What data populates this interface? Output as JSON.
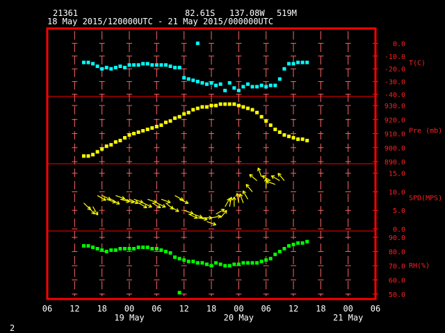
{
  "header": {
    "station_id": "21361",
    "lat": "82.61S",
    "lon": "137.08W",
    "elevation": "519M",
    "time_range": "18 May 2015/120000UTC - 21 May 2015/000000UTC"
  },
  "footer": {
    "page_number": "2"
  },
  "colors": {
    "background": "#000000",
    "frame": "#ff0000",
    "grid": "#ff6666",
    "label": "#ff2020",
    "text": "#ffffff",
    "temperature": "#00ffff",
    "pressure": "#ffff00",
    "wind": "#ffff00",
    "humidity": "#00ff00"
  },
  "chart_data": {
    "type": "scatter",
    "x_axis": {
      "unit": "hours since 18 May 2015 06 UTC",
      "range": [
        0,
        72
      ],
      "tick_labels": [
        "06",
        "12",
        "18",
        "00",
        "06",
        "12",
        "18",
        "00",
        "06",
        "12",
        "18",
        "00",
        "06"
      ],
      "date_labels": [
        {
          "x": 18,
          "label": "19 May"
        },
        {
          "x": 42,
          "label": "20 May"
        },
        {
          "x": 66,
          "label": "21 May"
        }
      ]
    },
    "panels": [
      {
        "id": "temperature",
        "label": "T(C)",
        "ylim": [
          -40,
          10
        ],
        "tick_labels": [
          "0.0",
          "-10.0",
          "-20.0",
          "-30.0",
          "-40.0"
        ],
        "tick_values": [
          0,
          -10,
          -20,
          -30,
          -40
        ],
        "series_color": "#00ffff",
        "points": [
          [
            8,
            -15
          ],
          [
            9,
            -15
          ],
          [
            10,
            -16
          ],
          [
            11,
            -18
          ],
          [
            12,
            -20
          ],
          [
            13,
            -19
          ],
          [
            14,
            -20
          ],
          [
            15,
            -19
          ],
          [
            16,
            -18
          ],
          [
            17,
            -19
          ],
          [
            18,
            -17
          ],
          [
            19,
            -17
          ],
          [
            20,
            -17
          ],
          [
            21,
            -16
          ],
          [
            22,
            -16
          ],
          [
            23,
            -17
          ],
          [
            24,
            -17
          ],
          [
            25,
            -17
          ],
          [
            26,
            -17
          ],
          [
            27,
            -18
          ],
          [
            28,
            -19
          ],
          [
            29,
            -19
          ],
          [
            30,
            -27
          ],
          [
            31,
            -28
          ],
          [
            32,
            -29
          ],
          [
            33,
            -30
          ],
          [
            34,
            -31
          ],
          [
            35,
            -32
          ],
          [
            36,
            -31
          ],
          [
            37,
            -33
          ],
          [
            38,
            -32
          ],
          [
            39,
            -37
          ],
          [
            40,
            -31
          ],
          [
            41,
            -35
          ],
          [
            42,
            -37
          ],
          [
            43,
            -34
          ],
          [
            44,
            -32
          ],
          [
            45,
            -34
          ],
          [
            46,
            -34
          ],
          [
            47,
            -33
          ],
          [
            48,
            -34
          ],
          [
            49,
            -33
          ],
          [
            50,
            -33
          ],
          [
            51,
            -28
          ],
          [
            52,
            -20
          ],
          [
            53,
            -16
          ],
          [
            54,
            -16
          ],
          [
            55,
            -15
          ],
          [
            56,
            -15
          ],
          [
            57,
            -15
          ],
          [
            33,
            0
          ]
        ]
      },
      {
        "id": "pressure",
        "label": "Pre (mb)",
        "ylim": [
          890,
          935
        ],
        "tick_labels": [
          "930.0",
          "920.0",
          "910.0",
          "900.0",
          "890.0"
        ],
        "tick_values": [
          930,
          920,
          910,
          900,
          890
        ],
        "series_color": "#ffff00",
        "points": [
          [
            8,
            894
          ],
          [
            9,
            894
          ],
          [
            10,
            895
          ],
          [
            11,
            897
          ],
          [
            12,
            899
          ],
          [
            13,
            901
          ],
          [
            14,
            902
          ],
          [
            15,
            904
          ],
          [
            16,
            905
          ],
          [
            17,
            907
          ],
          [
            18,
            909
          ],
          [
            19,
            910
          ],
          [
            20,
            911
          ],
          [
            21,
            912
          ],
          [
            22,
            913
          ],
          [
            23,
            914
          ],
          [
            24,
            915
          ],
          [
            25,
            916
          ],
          [
            26,
            918
          ],
          [
            27,
            919
          ],
          [
            28,
            921
          ],
          [
            29,
            922
          ],
          [
            30,
            924
          ],
          [
            31,
            925
          ],
          [
            32,
            927
          ],
          [
            33,
            928
          ],
          [
            34,
            929
          ],
          [
            35,
            929
          ],
          [
            36,
            930
          ],
          [
            37,
            930
          ],
          [
            38,
            931
          ],
          [
            39,
            931
          ],
          [
            40,
            931
          ],
          [
            41,
            931
          ],
          [
            42,
            930
          ],
          [
            43,
            929
          ],
          [
            44,
            928
          ],
          [
            45,
            927
          ],
          [
            46,
            925
          ],
          [
            47,
            922
          ],
          [
            48,
            919
          ],
          [
            49,
            916
          ],
          [
            50,
            913
          ],
          [
            51,
            911
          ],
          [
            52,
            909
          ],
          [
            53,
            908
          ],
          [
            54,
            907
          ],
          [
            55,
            906
          ],
          [
            56,
            906
          ],
          [
            57,
            905
          ]
        ]
      },
      {
        "id": "wind",
        "label": "SPD(MPS)",
        "ylim": [
          0,
          17
        ],
        "tick_labels": [
          "15.0",
          "10.0",
          "5.0",
          "0.0"
        ],
        "tick_values": [
          15,
          10,
          5,
          0
        ],
        "series_color": "#ffff00",
        "points": [
          [
            8,
            7,
            135
          ],
          [
            9,
            6,
            140
          ],
          [
            10,
            6,
            150
          ],
          [
            11,
            9,
            120
          ],
          [
            12,
            9,
            115
          ],
          [
            13,
            8,
            110
          ],
          [
            14,
            8,
            120
          ],
          [
            15,
            9,
            110
          ],
          [
            16,
            8,
            105
          ],
          [
            17,
            8,
            110
          ],
          [
            18,
            8,
            115
          ],
          [
            19,
            8,
            110
          ],
          [
            20,
            7,
            120
          ],
          [
            21,
            7,
            115
          ],
          [
            22,
            8,
            110
          ],
          [
            23,
            7,
            120
          ],
          [
            24,
            7,
            115
          ],
          [
            25,
            8,
            110
          ],
          [
            26,
            7,
            130
          ],
          [
            27,
            6,
            120
          ],
          [
            28,
            9,
            120
          ],
          [
            29,
            8,
            115
          ],
          [
            30,
            5,
            110
          ],
          [
            31,
            4,
            115
          ],
          [
            32,
            4,
            110
          ],
          [
            33,
            3,
            100
          ],
          [
            34,
            3,
            90
          ],
          [
            35,
            2,
            110
          ],
          [
            36,
            3,
            80
          ],
          [
            37,
            4,
            60
          ],
          [
            38,
            3,
            40
          ],
          [
            39,
            6,
            30
          ],
          [
            40,
            6,
            10
          ],
          [
            41,
            6,
            0
          ],
          [
            42,
            7,
            350
          ],
          [
            43,
            7,
            340
          ],
          [
            44,
            8,
            330
          ],
          [
            45,
            10,
            320
          ],
          [
            46,
            13,
            310
          ],
          [
            47,
            14,
            340
          ],
          [
            48,
            11,
            0
          ],
          [
            49,
            13,
            300
          ],
          [
            50,
            12,
            290
          ],
          [
            51,
            13,
            300
          ],
          [
            52,
            13,
            320
          ]
        ]
      },
      {
        "id": "humidity",
        "label": "RH(%)",
        "ylim": [
          48,
          93
        ],
        "tick_labels": [
          "90.0",
          "80.0",
          "70.0",
          "60.0",
          "50.0"
        ],
        "tick_values": [
          90,
          80,
          70,
          60,
          50
        ],
        "series_color": "#00ff00",
        "points": [
          [
            8,
            84
          ],
          [
            9,
            84
          ],
          [
            10,
            83
          ],
          [
            11,
            82
          ],
          [
            12,
            81
          ],
          [
            13,
            80
          ],
          [
            14,
            81
          ],
          [
            15,
            81
          ],
          [
            16,
            82
          ],
          [
            17,
            82
          ],
          [
            18,
            82
          ],
          [
            19,
            82
          ],
          [
            20,
            83
          ],
          [
            21,
            83
          ],
          [
            22,
            83
          ],
          [
            23,
            82
          ],
          [
            24,
            82
          ],
          [
            25,
            81
          ],
          [
            26,
            80
          ],
          [
            27,
            79
          ],
          [
            28,
            76
          ],
          [
            29,
            75
          ],
          [
            30,
            74
          ],
          [
            31,
            73
          ],
          [
            32,
            73
          ],
          [
            33,
            72
          ],
          [
            34,
            72
          ],
          [
            35,
            71
          ],
          [
            36,
            70
          ],
          [
            37,
            72
          ],
          [
            38,
            71
          ],
          [
            39,
            70
          ],
          [
            40,
            70
          ],
          [
            41,
            71
          ],
          [
            42,
            71
          ],
          [
            43,
            72
          ],
          [
            44,
            72
          ],
          [
            45,
            72
          ],
          [
            46,
            72
          ],
          [
            47,
            73
          ],
          [
            48,
            74
          ],
          [
            49,
            75
          ],
          [
            50,
            78
          ],
          [
            51,
            80
          ],
          [
            52,
            82
          ],
          [
            53,
            84
          ],
          [
            54,
            85
          ],
          [
            55,
            86
          ],
          [
            56,
            86
          ],
          [
            57,
            87
          ],
          [
            29,
            51
          ]
        ]
      }
    ]
  }
}
